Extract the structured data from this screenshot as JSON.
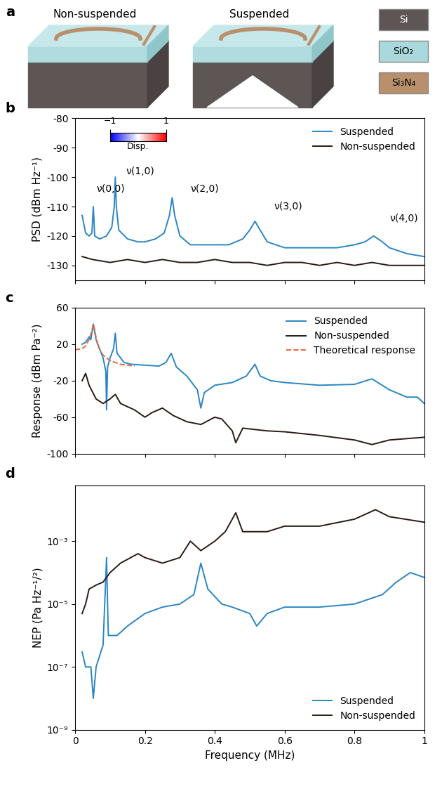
{
  "diagram": {
    "title": "a",
    "panels": [
      {
        "label": "Non-suspended"
      },
      {
        "label": "Suspended"
      }
    ],
    "materials": [
      {
        "label": "Si",
        "color": "#5e5555"
      },
      {
        "label": "SiO₂",
        "color": "#a9d9dc"
      },
      {
        "label": "Si₃N₄",
        "color": "#b8906c"
      }
    ]
  },
  "chart_data": [
    {
      "type": "line",
      "title": "b",
      "ylabel": "PSD (dBm Hz⁻¹)",
      "xlim": [
        0,
        1
      ],
      "xticks": [
        0,
        0.2,
        0.4,
        0.6,
        0.8,
        1
      ],
      "ylim": [
        -135,
        -80
      ],
      "yticks": [
        -130,
        -120,
        -110,
        -100,
        -90,
        -80
      ],
      "tick_labels": "y",
      "legend": "upper right",
      "colorbar": {
        "label": "Disp.",
        "range": [
          -1,
          1
        ],
        "ticks": [
          {
            "value": -1,
            "label": "−1"
          },
          1
        ]
      },
      "annotations": [
        {
          "text": "ν(0,0)",
          "x": 0.06,
          "y": -104
        },
        {
          "text": "ν(1,0)",
          "x": 0.145,
          "y": -98
        },
        {
          "text": "ν(2,0)",
          "x": 0.33,
          "y": -104
        },
        {
          "text": "ν(3,0)",
          "x": 0.57,
          "y": -110
        },
        {
          "text": "ν(4,0)",
          "x": 0.9,
          "y": -114
        }
      ],
      "series": [
        {
          "name": "Suspended",
          "color": "#2a86c4",
          "line_style": "solid",
          "x": [
            0.02,
            0.03,
            0.04,
            0.048,
            0.052,
            0.056,
            0.07,
            0.09,
            0.105,
            0.112,
            0.115,
            0.118,
            0.125,
            0.15,
            0.18,
            0.2,
            0.23,
            0.255,
            0.27,
            0.278,
            0.285,
            0.3,
            0.33,
            0.36,
            0.4,
            0.44,
            0.48,
            0.5,
            0.515,
            0.53,
            0.55,
            0.6,
            0.65,
            0.7,
            0.75,
            0.8,
            0.83,
            0.855,
            0.88,
            0.9,
            0.95,
            1.0
          ],
          "values": [
            -113,
            -119,
            -120,
            -119,
            -110,
            -120,
            -121,
            -120,
            -117,
            -110,
            -100,
            -110,
            -118,
            -121,
            -122,
            -122,
            -121,
            -119,
            -113,
            -107,
            -113,
            -120,
            -123,
            -123,
            -123,
            -123,
            -121,
            -118,
            -115,
            -118,
            -122,
            -124,
            -124,
            -124,
            -124,
            -123,
            -122,
            -120,
            -122,
            -124,
            -126,
            -127
          ]
        },
        {
          "name": "Non-suspended",
          "color": "#2b1a14",
          "line_style": "solid",
          "x": [
            0.02,
            0.05,
            0.1,
            0.15,
            0.2,
            0.25,
            0.3,
            0.35,
            0.4,
            0.45,
            0.5,
            0.55,
            0.6,
            0.65,
            0.7,
            0.75,
            0.8,
            0.85,
            0.9,
            0.95,
            1.0
          ],
          "values": [
            -127,
            -128,
            -129,
            -128,
            -129,
            -128,
            -129,
            -129,
            -128,
            -129,
            -129,
            -130,
            -129,
            -129,
            -130,
            -129,
            -130,
            -129,
            -130,
            -130,
            -130
          ]
        }
      ]
    },
    {
      "type": "line",
      "title": "c",
      "ylabel": "Response (dBm Pa⁻²)",
      "xlim": [
        0,
        1
      ],
      "xticks": [
        0,
        0.2,
        0.4,
        0.6,
        0.8,
        1
      ],
      "ylim": [
        -100,
        60
      ],
      "yticks": [
        -100,
        -60,
        -20,
        20,
        60
      ],
      "tick_labels": "y",
      "legend": "upper right",
      "series": [
        {
          "name": "Suspended",
          "color": "#2a86c4",
          "line_style": "solid",
          "x": [
            0.02,
            0.03,
            0.04,
            0.045,
            0.052,
            0.06,
            0.07,
            0.08,
            0.088,
            0.09,
            0.093,
            0.1,
            0.11,
            0.115,
            0.12,
            0.14,
            0.16,
            0.2,
            0.24,
            0.26,
            0.275,
            0.29,
            0.32,
            0.35,
            0.36,
            0.37,
            0.4,
            0.45,
            0.49,
            0.515,
            0.53,
            0.56,
            0.6,
            0.7,
            0.8,
            0.85,
            0.9,
            0.95,
            0.98,
            1.0
          ],
          "values": [
            20,
            22,
            28,
            25,
            42,
            25,
            15,
            5,
            -10,
            -52,
            -5,
            5,
            15,
            32,
            10,
            0,
            -2,
            -3,
            -4,
            0,
            10,
            -5,
            -15,
            -30,
            -50,
            -33,
            -25,
            -22,
            -15,
            -2,
            -15,
            -20,
            -22,
            -25,
            -24,
            -18,
            -30,
            -38,
            -38,
            -45
          ]
        },
        {
          "name": "Non-suspended",
          "color": "#2b1a14",
          "line_style": "solid",
          "x": [
            0.02,
            0.03,
            0.04,
            0.06,
            0.08,
            0.1,
            0.115,
            0.13,
            0.17,
            0.2,
            0.22,
            0.25,
            0.28,
            0.32,
            0.36,
            0.4,
            0.42,
            0.45,
            0.46,
            0.48,
            0.55,
            0.6,
            0.7,
            0.8,
            0.85,
            0.9,
            1.0
          ],
          "values": [
            -20,
            -12,
            -25,
            -40,
            -45,
            -40,
            -35,
            -45,
            -52,
            -60,
            -55,
            -50,
            -58,
            -65,
            -68,
            -60,
            -62,
            -75,
            -88,
            -72,
            -75,
            -76,
            -80,
            -85,
            -90,
            -85,
            -82
          ]
        },
        {
          "name": "Theoretical response",
          "color": "#e8683a",
          "line_style": "dashed",
          "x": [
            0.0,
            0.02,
            0.03,
            0.04,
            0.048,
            0.052,
            0.056,
            0.065,
            0.08,
            0.1,
            0.13,
            0.17
          ],
          "values": [
            14,
            15,
            18,
            25,
            35,
            42,
            35,
            18,
            8,
            2,
            -2,
            -4
          ]
        }
      ]
    },
    {
      "type": "line",
      "title": "d",
      "xlabel": "Frequency (MHz)",
      "ylabel": "NEP (Pa Hz⁻¹/²)",
      "log": "y",
      "xlim": [
        0,
        1
      ],
      "xticks": [
        0,
        0.2,
        0.4,
        0.6,
        0.8,
        1
      ],
      "ylim": [
        1e-09,
        0.06
      ],
      "yticks": [
        {
          "value": 1e-09,
          "label": "10⁻⁹"
        },
        {
          "value": 1e-07,
          "label": "10⁻⁷"
        },
        {
          "value": 1e-05,
          "label": "10⁻⁵"
        },
        {
          "value": 0.001,
          "label": "10⁻³"
        }
      ],
      "legend": "lower right",
      "series": [
        {
          "name": "Suspended",
          "color": "#2a86c4",
          "line_style": "solid",
          "x": [
            0.02,
            0.03,
            0.045,
            0.052,
            0.06,
            0.08,
            0.09,
            0.095,
            0.12,
            0.15,
            0.2,
            0.25,
            0.3,
            0.34,
            0.36,
            0.38,
            0.42,
            0.45,
            0.5,
            0.52,
            0.55,
            0.6,
            0.7,
            0.8,
            0.88,
            0.92,
            0.96,
            1.0
          ],
          "values": [
            3e-07,
            1e-07,
            1e-07,
            1e-08,
            1e-07,
            5e-07,
            0.0003,
            1e-06,
            1e-06,
            2e-06,
            5e-06,
            8e-06,
            1e-05,
            2e-05,
            0.0002,
            3e-05,
            1e-05,
            8e-06,
            5e-06,
            2e-06,
            5e-06,
            8e-06,
            8e-06,
            1e-05,
            2e-05,
            5e-05,
            0.0001,
            7e-05
          ]
        },
        {
          "name": "Non-suspended",
          "color": "#2b1a14",
          "line_style": "solid",
          "x": [
            0.02,
            0.03,
            0.04,
            0.06,
            0.08,
            0.1,
            0.13,
            0.18,
            0.2,
            0.25,
            0.3,
            0.33,
            0.36,
            0.4,
            0.43,
            0.46,
            0.48,
            0.55,
            0.6,
            0.7,
            0.8,
            0.86,
            0.9,
            1.0
          ],
          "values": [
            5e-06,
            1e-05,
            3e-05,
            4e-05,
            5e-05,
            0.0001,
            0.0002,
            0.0004,
            0.0003,
            0.0002,
            0.0003,
            0.001,
            0.0005,
            0.001,
            0.002,
            0.008,
            0.002,
            0.002,
            0.003,
            0.003,
            0.005,
            0.01,
            0.006,
            0.004
          ]
        }
      ]
    }
  ]
}
